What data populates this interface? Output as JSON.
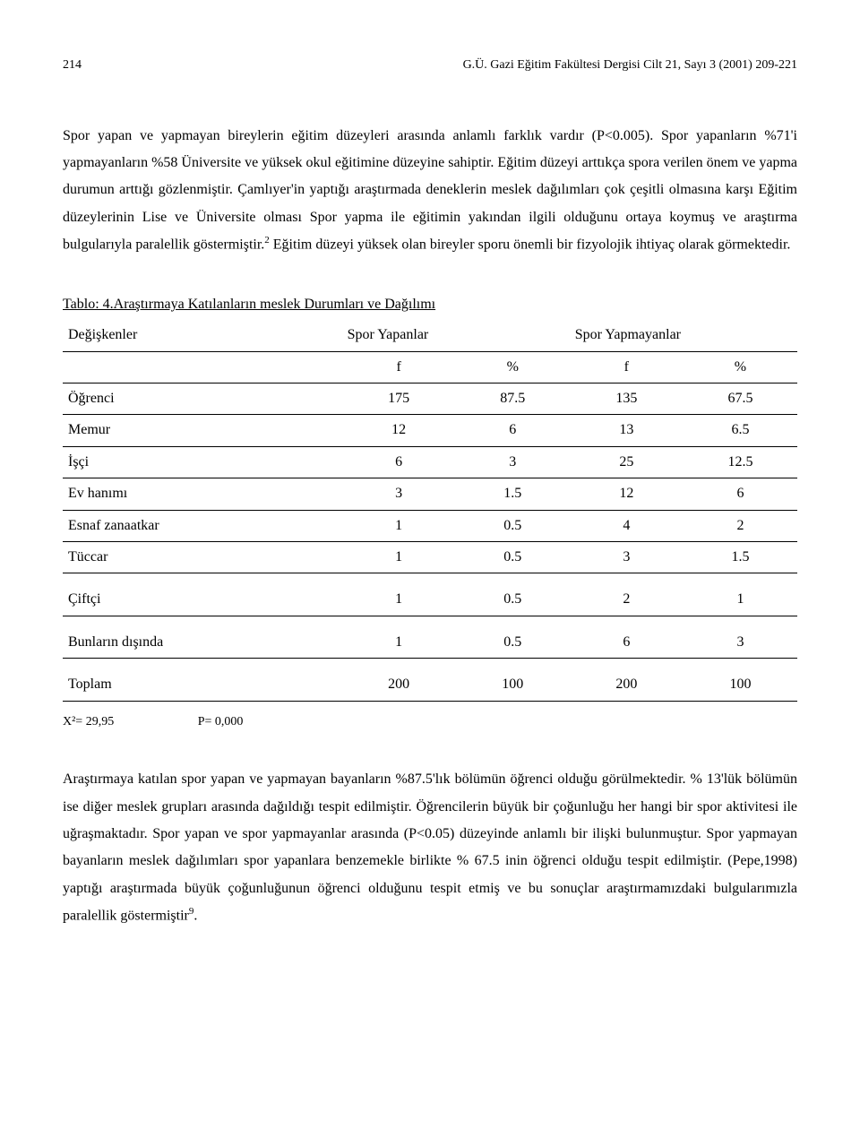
{
  "header": {
    "page_number": "214",
    "journal_ref": "G.Ü. Gazi Eğitim Fakültesi Dergisi Cilt 21, Sayı 3 (2001) 209-221"
  },
  "paragraphs": {
    "p1": "Spor yapan ve yapmayan bireylerin eğitim düzeyleri arasında anlamlı farklık vardır (P<0.005). Spor yapanların %71'i yapmayanların %58 Üniversite ve yüksek okul eğitimine düzeyine  sahiptir. Eğitim düzeyi arttıkça spora verilen önem ve yapma durumun arttığı  gözlenmiştir. Çamlıyer'in yaptığı araştırmada deneklerin meslek dağılımları çok çeşitli olmasına karşı Eğitim düzeylerinin Lise ve Üniversite olması Spor yapma ile eğitimin yakından ilgili olduğunu ortaya koymuş ve araştırma bulgularıyla paralellik göstermiştir.",
    "p1_sup": "2",
    "p1_tail": " Eğitim düzeyi yüksek olan bireyler sporu önemli bir fizyolojik ihtiyaç olarak görmektedir.",
    "p2": "Araştırmaya katılan spor yapan ve yapmayan bayanların %87.5'lık bölümün öğrenci olduğu görülmektedir. % 13'lük bölümün ise diğer meslek grupları arasında dağıldığı tespit edilmiştir.  Öğrencilerin büyük bir çoğunluğu her hangi bir spor aktivitesi ile uğraşmaktadır. Spor yapan ve spor yapmayanlar arasında (P<0.05) düzeyinde anlamlı bir ilişki bulunmuştur. Spor yapmayan bayanların meslek dağılımları spor yapanlara benzemekle birlikte  % 67.5 inin öğrenci olduğu tespit edilmiştir. (Pepe,1998) yaptığı araştırmada  büyük çoğunluğunun öğrenci olduğunu tespit etmiş ve bu sonuçlar araştırmamızdaki bulgularımızla  paralellik göstermiştir",
    "p2_sup": "9",
    "p2_tail": "."
  },
  "table4": {
    "title": "Tablo: 4.Araştırmaya Katılanların meslek Durumları ve Dağılımı",
    "header": {
      "c1": "Değişkenler",
      "g1": "Spor Yapanlar",
      "g2": "Spor Yapmayanlar",
      "sub": [
        "f",
        "%",
        "f",
        "%"
      ]
    },
    "rows": [
      {
        "label": "Öğrenci",
        "v": [
          "175",
          "87.5",
          "135",
          "67.5"
        ]
      },
      {
        "label": "Memur",
        "v": [
          "12",
          "6",
          "13",
          "6.5"
        ]
      },
      {
        "label": "İşçi",
        "v": [
          "6",
          "3",
          "25",
          "12.5"
        ]
      },
      {
        "label": "Ev hanımı",
        "v": [
          "3",
          "1.5",
          "12",
          "6"
        ]
      },
      {
        "label": "Esnaf zanaatkar",
        "v": [
          "1",
          "0.5",
          "4",
          "2"
        ]
      },
      {
        "label": "Tüccar",
        "v": [
          "1",
          "0.5",
          "3",
          "1.5"
        ]
      },
      {
        "label": "Çiftçi",
        "v": [
          "1",
          "0.5",
          "2",
          "1"
        ]
      },
      {
        "label": "Bunların dışında",
        "v": [
          "1",
          "0.5",
          "6",
          "3"
        ]
      },
      {
        "label": "Toplam",
        "v": [
          "200",
          "100",
          "200",
          "100"
        ]
      }
    ],
    "footnote": {
      "x2": "X²= 29,95",
      "p": "P= 0,000"
    }
  }
}
